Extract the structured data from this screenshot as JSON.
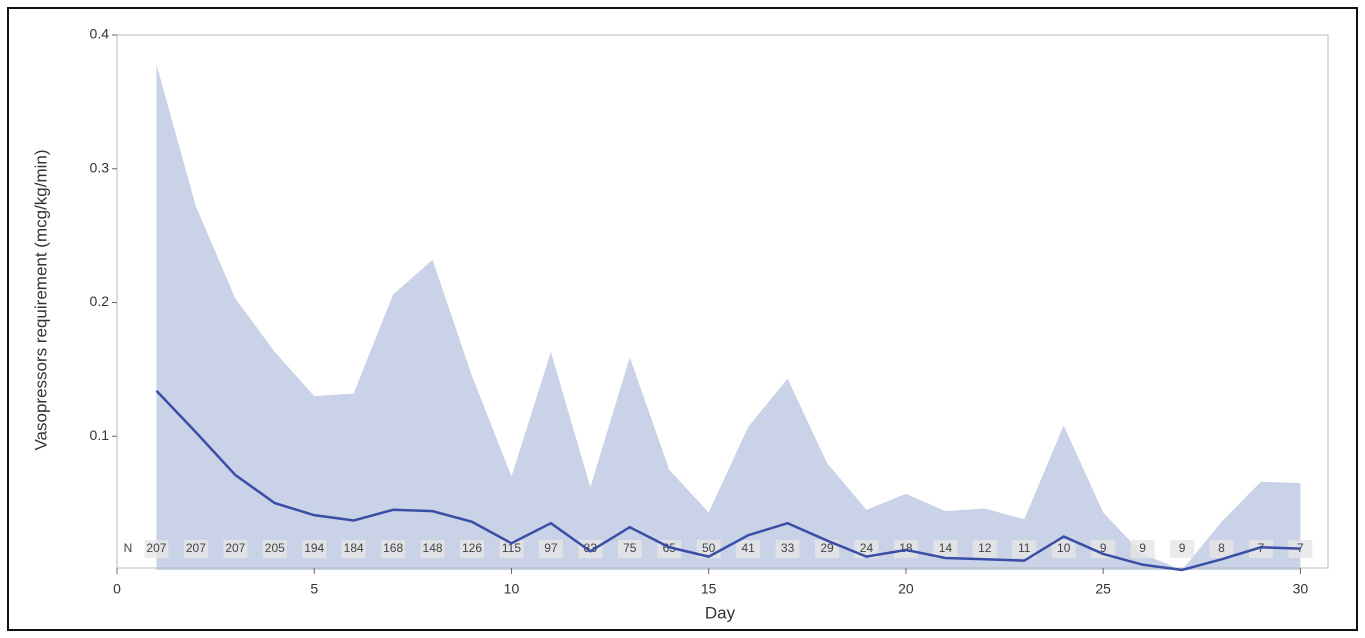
{
  "chart_data": {
    "type": "line",
    "x_label": "Day",
    "y_label": "Vasopressors requirement (mcg/kg/min)",
    "x": [
      1,
      2,
      3,
      4,
      5,
      6,
      7,
      8,
      9,
      10,
      11,
      12,
      13,
      14,
      15,
      16,
      17,
      18,
      19,
      20,
      21,
      22,
      23,
      24,
      25,
      26,
      27,
      28,
      29,
      30
    ],
    "band": {
      "color": "#c9d2e7",
      "values": [
        0.378,
        0.272,
        0.203,
        0.163,
        0.13,
        0.132,
        0.206,
        0.232,
        0.145,
        0.07,
        0.163,
        0.062,
        0.159,
        0.075,
        0.043,
        0.107,
        0.143,
        0.08,
        0.045,
        0.057,
        0.044,
        0.046,
        0.038,
        0.108,
        0.043,
        0.012,
        0,
        0.036,
        0.066,
        0.065
      ]
    },
    "series": [
      {
        "color": "#3a4ea6",
        "values": [
          0.134,
          0.103,
          0.071,
          0.05,
          0.041,
          0.037,
          0.045,
          0.044,
          0.036,
          0.02,
          0.035,
          0.014,
          0.032,
          0.017,
          0.01,
          0.026,
          0.035,
          0.022,
          0.01,
          0.015,
          0.009,
          0.008,
          0.007,
          0.025,
          0.012,
          0.004,
          0,
          0.008,
          0.017,
          0.016
        ]
      }
    ],
    "n_label": "N",
    "n_values": [
      207,
      207,
      207,
      205,
      194,
      184,
      168,
      148,
      126,
      115,
      97,
      83,
      75,
      65,
      50,
      41,
      33,
      29,
      24,
      18,
      14,
      12,
      11,
      10,
      9,
      9,
      9,
      8,
      7,
      7
    ],
    "xlim": [
      0,
      30.7
    ],
    "xticks": [
      0,
      5,
      10,
      15,
      20,
      25,
      30
    ],
    "ylim": [
      0,
      0.4
    ],
    "yticks": [
      0.1,
      0.2,
      0.3,
      0.4
    ]
  }
}
